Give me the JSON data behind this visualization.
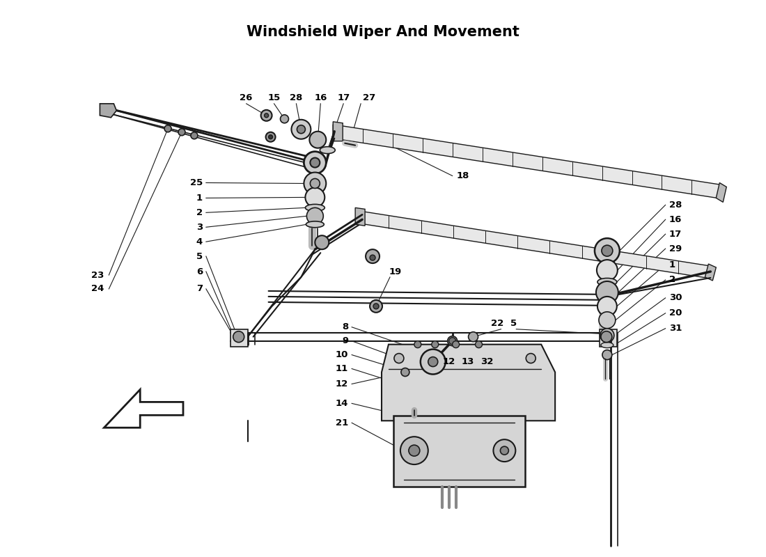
{
  "title": "Windshield Wiper And Movement",
  "bg_color": "#ffffff",
  "lc": "#1a1a1a",
  "figsize": [
    11.0,
    8.0
  ],
  "dpi": 100,
  "lw": 1.3,
  "lw_thick": 2.0,
  "lw_thin": 0.8,
  "fs_label": 9.5
}
